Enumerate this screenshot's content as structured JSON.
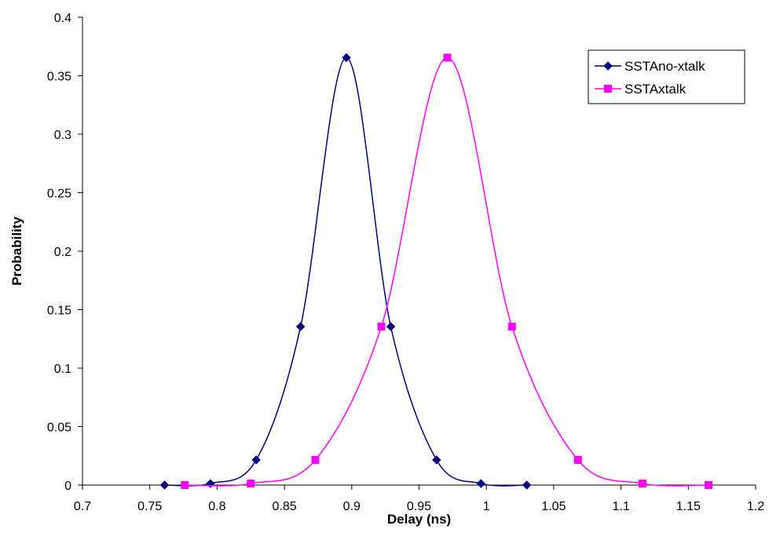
{
  "chart_data": {
    "type": "line",
    "title": "",
    "xlabel": "Delay (ns)",
    "ylabel": "Probability",
    "xlim": [
      0.7,
      1.2
    ],
    "ylim": [
      0,
      0.4
    ],
    "x_ticks": [
      0.7,
      0.75,
      0.8,
      0.85,
      0.9,
      0.95,
      1,
      1.05,
      1.1,
      1.15,
      1.2
    ],
    "x_tick_labels": [
      "0.7",
      "0.75",
      "0.8",
      "0.85",
      "0.9",
      "0.95",
      "1",
      "1.05",
      "1.1",
      "1.15",
      "1.2"
    ],
    "y_ticks": [
      0,
      0.05,
      0.1,
      0.15,
      0.2,
      0.25,
      0.3,
      0.35,
      0.4
    ],
    "y_tick_labels": [
      "0",
      "0.05",
      "0.1",
      "0.15",
      "0.2",
      "0.25",
      "0.3",
      "0.35",
      "0.4"
    ],
    "grid": false,
    "smooth": true,
    "legend_position": "top-right",
    "series": [
      {
        "name": "SSTAno-xtalk",
        "color": "#000080",
        "marker": "diamond",
        "points": [
          {
            "x": 0.761,
            "y": 0.0
          },
          {
            "x": 0.795,
            "y": 0.0013
          },
          {
            "x": 0.829,
            "y": 0.0215
          },
          {
            "x": 0.862,
            "y": 0.1355
          },
          {
            "x": 0.896,
            "y": 0.3655
          },
          {
            "x": 0.929,
            "y": 0.1355
          },
          {
            "x": 0.963,
            "y": 0.0215
          },
          {
            "x": 0.996,
            "y": 0.0013
          },
          {
            "x": 1.03,
            "y": 0.0
          }
        ]
      },
      {
        "name": "SSTAxtalk",
        "color": "#ff00ff",
        "marker": "square",
        "points": [
          {
            "x": 0.776,
            "y": 0.0
          },
          {
            "x": 0.825,
            "y": 0.0013
          },
          {
            "x": 0.873,
            "y": 0.0215
          },
          {
            "x": 0.922,
            "y": 0.1355
          },
          {
            "x": 0.971,
            "y": 0.3655
          },
          {
            "x": 1.019,
            "y": 0.1355
          },
          {
            "x": 1.068,
            "y": 0.0215
          },
          {
            "x": 1.116,
            "y": 0.0013
          },
          {
            "x": 1.165,
            "y": 0.0
          }
        ]
      }
    ]
  }
}
